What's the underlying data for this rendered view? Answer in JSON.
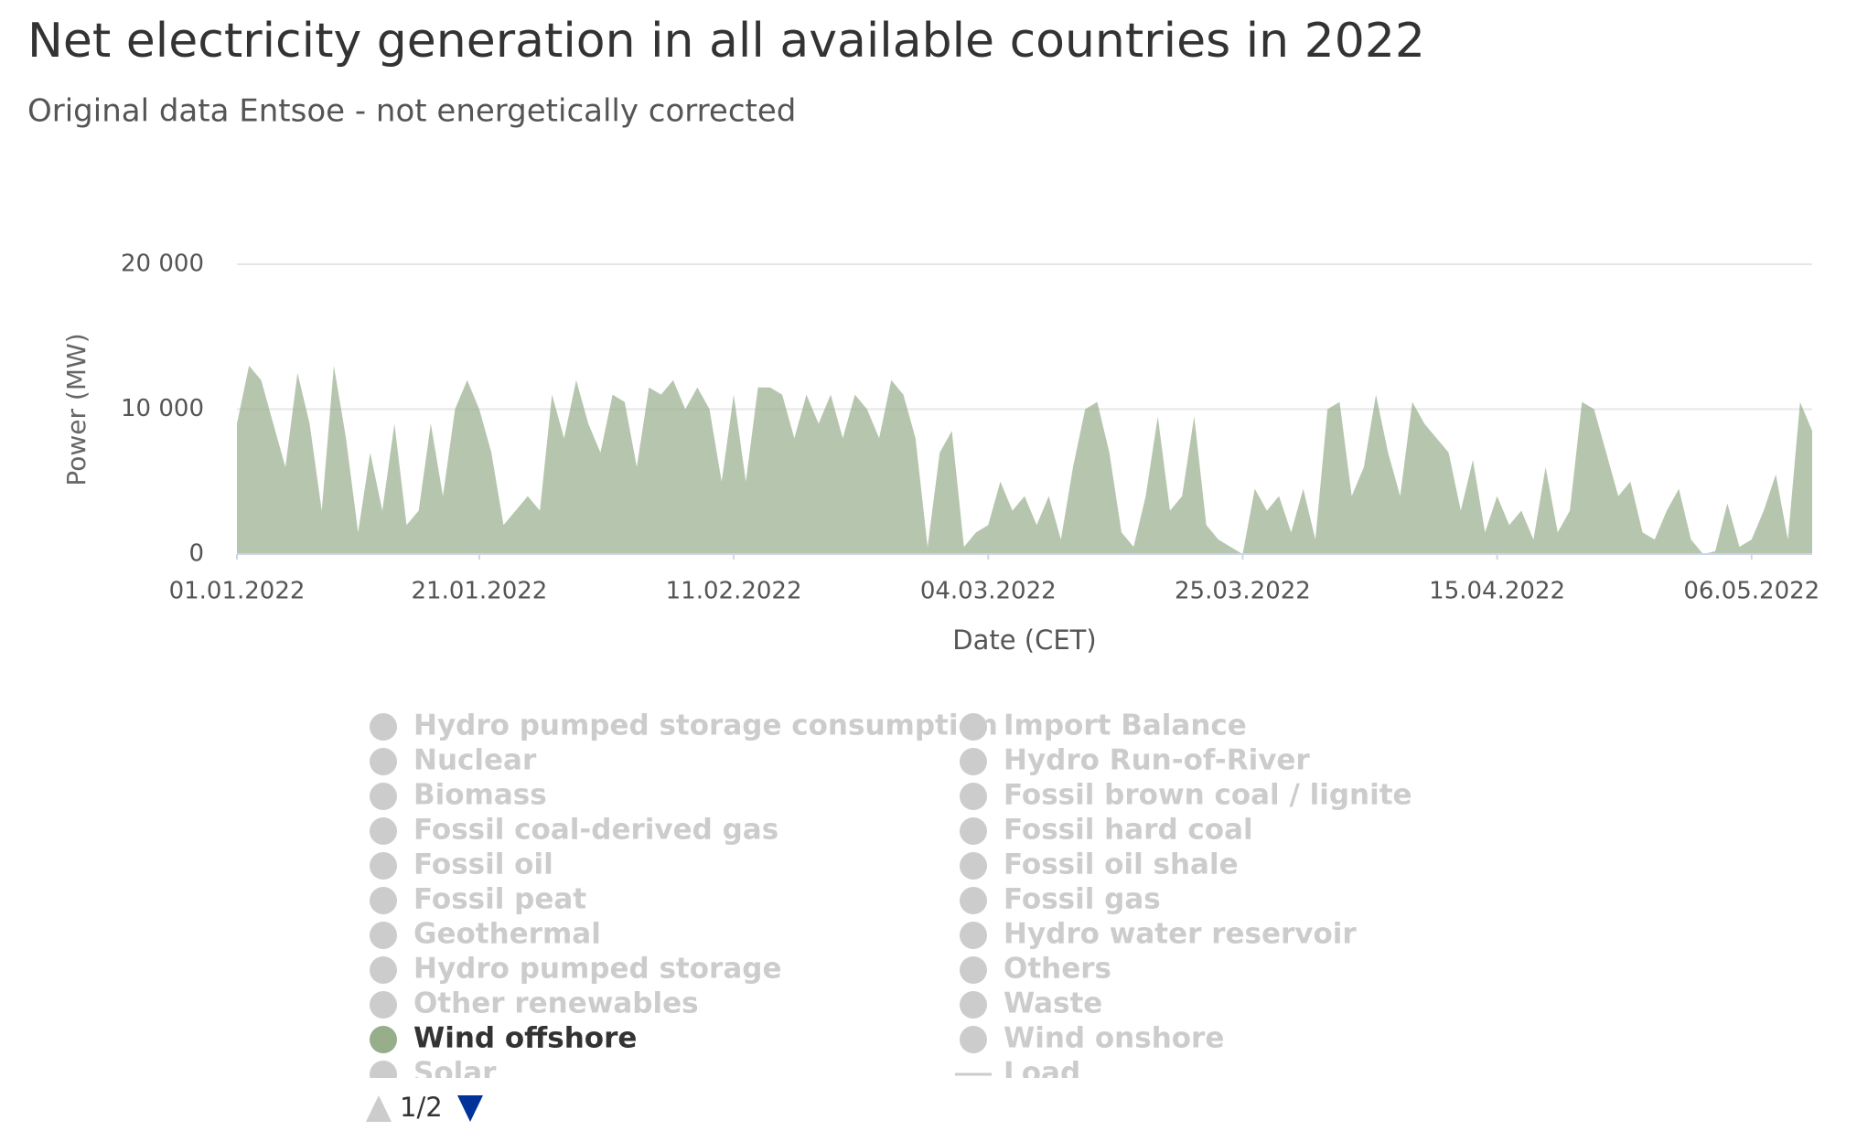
{
  "chart_data": {
    "type": "area",
    "title": "Net electricity generation in all available countries in 2022",
    "subtitle": "Original data Entsoe - not energetically corrected",
    "x_label": "Date (CET)",
    "y_label": "Power (MW)",
    "x": [
      "01.01.2022",
      "02.01.2022",
      "03.01.2022",
      "04.01.2022",
      "05.01.2022",
      "06.01.2022",
      "07.01.2022",
      "08.01.2022",
      "09.01.2022",
      "10.01.2022",
      "11.01.2022",
      "12.01.2022",
      "13.01.2022",
      "14.01.2022",
      "15.01.2022",
      "16.01.2022",
      "17.01.2022",
      "18.01.2022",
      "19.01.2022",
      "20.01.2022",
      "21.01.2022",
      "22.01.2022",
      "23.01.2022",
      "24.01.2022",
      "25.01.2022",
      "26.01.2022",
      "27.01.2022",
      "28.01.2022",
      "29.01.2022",
      "30.01.2022",
      "31.01.2022",
      "01.02.2022",
      "02.02.2022",
      "03.02.2022",
      "04.02.2022",
      "05.02.2022",
      "06.02.2022",
      "07.02.2022",
      "08.02.2022",
      "09.02.2022",
      "10.02.2022",
      "11.02.2022",
      "12.02.2022",
      "13.02.2022",
      "14.02.2022",
      "15.02.2022",
      "16.02.2022",
      "17.02.2022",
      "18.02.2022",
      "19.02.2022",
      "20.02.2022",
      "21.02.2022",
      "22.02.2022",
      "23.02.2022",
      "24.02.2022",
      "25.02.2022",
      "26.02.2022",
      "27.02.2022",
      "28.02.2022",
      "01.03.2022",
      "02.03.2022",
      "03.03.2022",
      "04.03.2022",
      "05.03.2022",
      "06.03.2022",
      "07.03.2022",
      "08.03.2022",
      "09.03.2022",
      "10.03.2022",
      "11.03.2022",
      "12.03.2022",
      "13.03.2022",
      "14.03.2022",
      "15.03.2022",
      "16.03.2022",
      "17.03.2022",
      "18.03.2022",
      "19.03.2022",
      "20.03.2022",
      "21.03.2022",
      "22.03.2022",
      "23.03.2022",
      "24.03.2022",
      "25.03.2022",
      "26.03.2022",
      "27.03.2022",
      "28.03.2022",
      "29.03.2022",
      "30.03.2022",
      "31.03.2022",
      "01.04.2022",
      "02.04.2022",
      "03.04.2022",
      "04.04.2022",
      "05.04.2022",
      "06.04.2022",
      "07.04.2022",
      "08.04.2022",
      "09.04.2022",
      "10.04.2022",
      "11.04.2022",
      "12.04.2022",
      "13.04.2022",
      "14.04.2022",
      "15.04.2022",
      "16.04.2022",
      "17.04.2022",
      "18.04.2022",
      "19.04.2022",
      "20.04.2022",
      "21.04.2022",
      "22.04.2022",
      "23.04.2022",
      "24.04.2022",
      "25.04.2022",
      "26.04.2022",
      "27.04.2022",
      "28.04.2022",
      "29.04.2022",
      "30.04.2022",
      "01.05.2022",
      "02.05.2022",
      "03.05.2022",
      "04.05.2022",
      "05.05.2022",
      "06.05.2022",
      "07.05.2022",
      "08.05.2022",
      "09.05.2022",
      "10.05.2022",
      "11.05.2022"
    ],
    "series": [
      {
        "name": "Wind offshore",
        "color": "#97ae8b",
        "values": [
          9000,
          13000,
          12000,
          9000,
          6000,
          12500,
          9000,
          3000,
          13000,
          8000,
          1500,
          7000,
          3000,
          9000,
          2000,
          3000,
          9000,
          4000,
          10000,
          12000,
          10000,
          7000,
          2000,
          3000,
          4000,
          3000,
          11000,
          8000,
          12000,
          9000,
          7000,
          11000,
          10500,
          6000,
          11500,
          11000,
          12000,
          10000,
          11500,
          10000,
          5000,
          11000,
          5000,
          11500,
          11500,
          11000,
          8000,
          11000,
          9000,
          11000,
          8000,
          11000,
          10000,
          8000,
          12000,
          11000,
          8000,
          500,
          7000,
          8500,
          500,
          1500,
          2000,
          5000,
          3000,
          4000,
          2000,
          4000,
          1000,
          6000,
          10000,
          10500,
          7000,
          1500,
          500,
          4000,
          9500,
          3000,
          4000,
          9500,
          2000,
          1000,
          500,
          0,
          4500,
          3000,
          4000,
          1500,
          4500,
          1000,
          10000,
          10500,
          4000,
          6000,
          11000,
          7000,
          4000,
          10500,
          9000,
          8000,
          7000,
          3000,
          6500,
          1500,
          4000,
          2000,
          3000,
          1000,
          6000,
          1500,
          3000,
          10500,
          10000,
          7000,
          4000,
          5000,
          1500,
          1000,
          3000,
          4500,
          1000,
          0,
          200,
          3500,
          500,
          1000,
          3000,
          5500,
          1000,
          10500,
          8500
        ]
      }
    ],
    "xlim": [
      "01.01.2022",
      "11.05.2022"
    ],
    "xticks": [
      "01.01.2022",
      "21.01.2022",
      "11.02.2022",
      "04.03.2022",
      "25.03.2022",
      "15.04.2022",
      "06.05.2022"
    ],
    "ylim": [
      0,
      20000
    ],
    "yticks": [
      0,
      {
        "value": 10000,
        "label": "10 000"
      },
      {
        "value": 20000,
        "label": "20 000"
      }
    ],
    "grid": true,
    "legend": {
      "items": [
        {
          "name": "Hydro pumped storage consumption",
          "color": "#cccccc"
        },
        {
          "name": "Import Balance",
          "color": "#cccccc"
        },
        {
          "name": "Nuclear",
          "color": "#cccccc"
        },
        {
          "name": "Hydro Run-of-River",
          "color": "#cccccc"
        },
        {
          "name": "Biomass",
          "color": "#cccccc"
        },
        {
          "name": "Fossil brown coal / lignite",
          "color": "#cccccc"
        },
        {
          "name": "Fossil coal-derived gas",
          "color": "#cccccc"
        },
        {
          "name": "Fossil hard coal",
          "color": "#cccccc"
        },
        {
          "name": "Fossil oil",
          "color": "#cccccc"
        },
        {
          "name": "Fossil oil shale",
          "color": "#cccccc"
        },
        {
          "name": "Fossil peat",
          "color": "#cccccc"
        },
        {
          "name": "Fossil gas",
          "color": "#cccccc"
        },
        {
          "name": "Geothermal",
          "color": "#cccccc"
        },
        {
          "name": "Hydro water reservoir",
          "color": "#cccccc"
        },
        {
          "name": "Hydro pumped storage",
          "color": "#cccccc"
        },
        {
          "name": "Others",
          "color": "#cccccc"
        },
        {
          "name": "Other renewables",
          "color": "#cccccc"
        },
        {
          "name": "Waste",
          "color": "#cccccc"
        },
        {
          "name": "Wind offshore",
          "color": "#97ae8b",
          "visible": true
        },
        {
          "name": "Wind onshore",
          "color": "#cccccc"
        },
        {
          "name": "Solar",
          "color": "#cccccc"
        },
        {
          "name": "Load",
          "color": "#cccccc",
          "symbol": "line"
        }
      ],
      "page": "1/2"
    }
  }
}
